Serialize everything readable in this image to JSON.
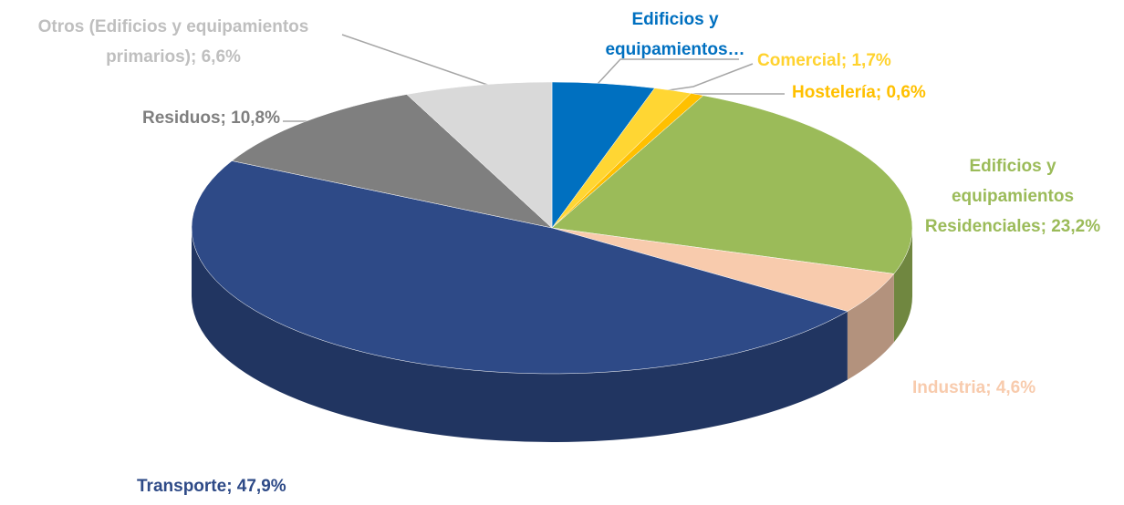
{
  "chart_data": {
    "type": "pie",
    "categories": [
      "Edificios y equipamientos…",
      "Comercial; 1,7%",
      "Hostelería; 0,6%",
      "Edificios y equipamientos Residenciales; 23,2%",
      "Industria; 4,6%",
      "Transporte; 47,9%",
      "Residuos; 10,8%",
      "Otros (Edificios y equipamientos primarios); 6,6%"
    ],
    "values": [
      4.6,
      1.7,
      0.6,
      23.2,
      4.6,
      47.9,
      10.8,
      6.6
    ],
    "colors": [
      "#0070c0",
      "#ffd633",
      "#ffc000",
      "#9bbb59",
      "#f8cbad",
      "#2e4a87",
      "#7f7f7f",
      "#d9d9d9"
    ],
    "label_colors": [
      "#0070c0",
      "#ffd22e",
      "#ffc000",
      "#9bbb59",
      "#f8cbad",
      "#2e4a87",
      "#7f7f7f",
      "#bfbfbf"
    ]
  }
}
